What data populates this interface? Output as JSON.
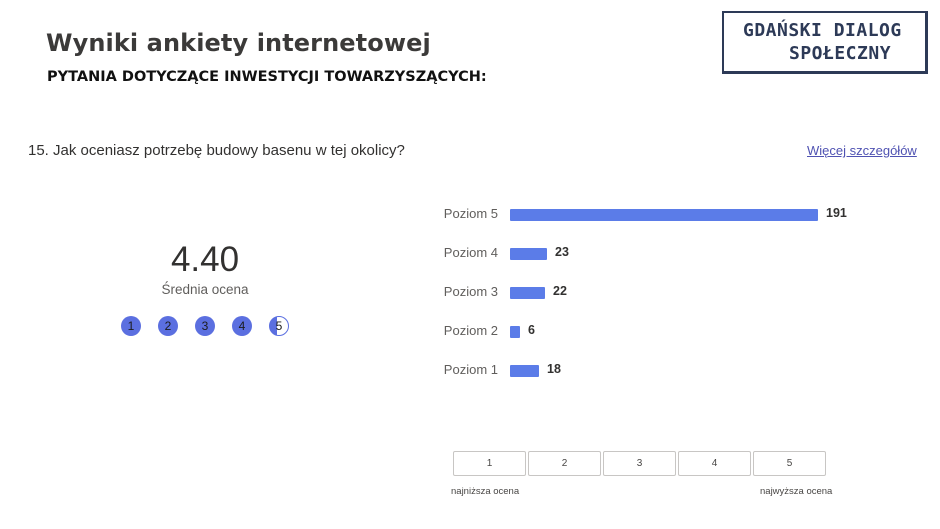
{
  "header": {
    "title": "Wyniki ankiety internetowej",
    "section": "PYTANIA DOTYCZĄCE INWESTYCJI TOWARZYSZĄCYCH:"
  },
  "logo": {
    "line1": "GDAŃSKI DIALOG",
    "line2": "SPOŁECZNY",
    "color": "#2d3a57"
  },
  "question": {
    "text": "15. Jak oceniasz potrzebę budowy basenu w tej okolicy?",
    "more_link": "Więcej szczegółów"
  },
  "summary": {
    "average": "4.40",
    "average_label": "Średnia ocena",
    "rating_dots": [
      "1",
      "2",
      "3",
      "4",
      "5"
    ],
    "rating_fill": 4.4,
    "accent_color": "#5b6fe0"
  },
  "chart_data": {
    "type": "bar",
    "orientation": "horizontal",
    "categories": [
      "Poziom 5",
      "Poziom 4",
      "Poziom 3",
      "Poziom 2",
      "Poziom 1"
    ],
    "values": [
      191,
      23,
      22,
      6,
      18
    ],
    "bar_color": "#5b7ce8"
  },
  "scale": {
    "boxes": [
      "1",
      "2",
      "3",
      "4",
      "5"
    ],
    "low_label": "najniższa ocena",
    "high_label": "najwyższa ocena"
  }
}
